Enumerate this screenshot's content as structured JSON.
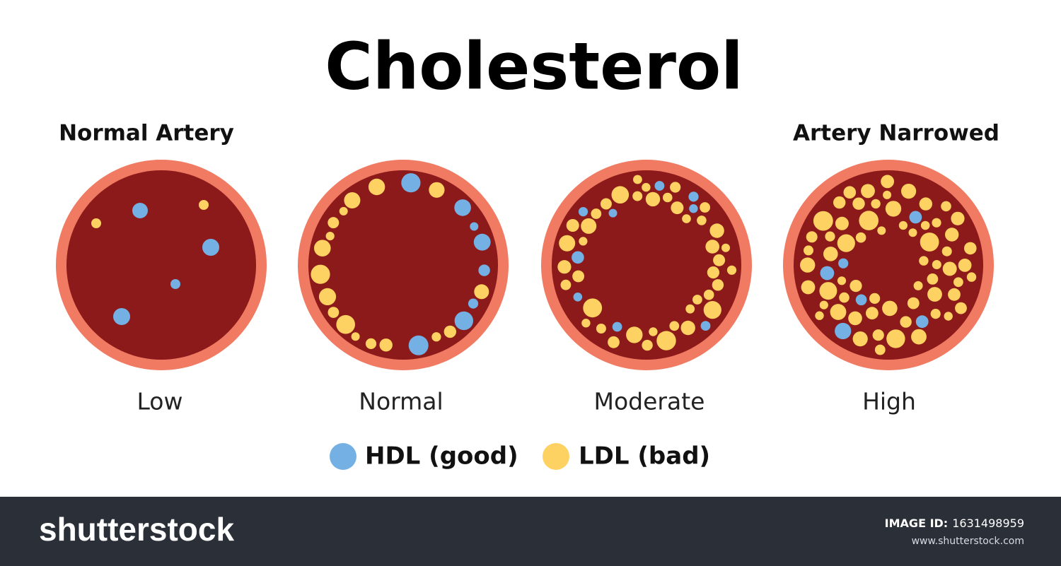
{
  "title": "Cholesterol",
  "panels": [
    {
      "heading": "Normal Artery",
      "label": "Low"
    },
    {
      "label": "Normal"
    },
    {
      "label": "Moderate"
    },
    {
      "heading": "Artery Narrowed",
      "label": "High"
    }
  ],
  "legend": [
    {
      "label": "HDL (good)"
    },
    {
      "label": "LDL (bad)"
    }
  ],
  "footer": {
    "logo": "shutterstock",
    "image_id_label": "IMAGE ID:",
    "image_id": "1631498959",
    "url": "www.shutterstock.com"
  }
}
